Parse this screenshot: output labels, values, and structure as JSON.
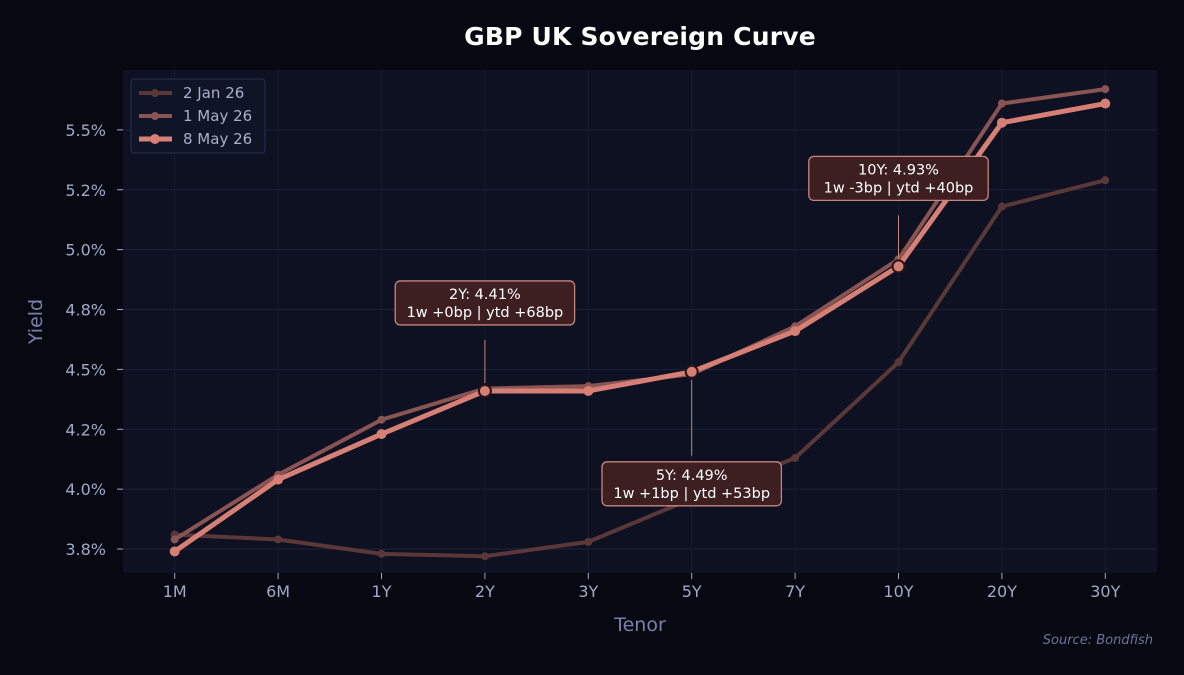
{
  "chart_data": {
    "type": "line",
    "title": "GBP UK Sovereign Curve",
    "xlabel": "Tenor",
    "ylabel": "Yield",
    "categories": [
      "1M",
      "6M",
      "1Y",
      "2Y",
      "3Y",
      "5Y",
      "7Y",
      "10Y",
      "20Y",
      "30Y"
    ],
    "y_ticks": [
      3.75,
      4.0,
      4.25,
      4.5,
      4.75,
      5.0,
      5.25,
      5.5
    ],
    "y_tick_labels": [
      "3.8%",
      "4.0%",
      "4.2%",
      "4.5%",
      "4.8%",
      "5.0%",
      "5.2%",
      "5.5%"
    ],
    "ylim": [
      3.65,
      5.75
    ],
    "grid": true,
    "legend_position": "top-left",
    "series": [
      {
        "name": "2 Jan 26",
        "color": "#5a3838",
        "values": [
          3.81,
          3.79,
          3.73,
          3.72,
          3.78,
          3.96,
          4.13,
          4.53,
          5.18,
          5.29
        ]
      },
      {
        "name": "1 May 26",
        "color": "#8a5452",
        "values": [
          3.79,
          4.06,
          4.29,
          4.42,
          4.43,
          4.48,
          4.68,
          4.96,
          5.61,
          5.67
        ]
      },
      {
        "name": "8 May 26",
        "color": "#d67f74",
        "values": [
          3.74,
          4.04,
          4.23,
          4.41,
          4.41,
          4.49,
          4.66,
          4.93,
          5.53,
          5.61
        ]
      }
    ],
    "annotations": [
      {
        "category": "2Y",
        "series": "8 May 26",
        "line1": "2Y: 4.41%",
        "line2": "1w +0bp | ytd +68bp",
        "placement": "above"
      },
      {
        "category": "5Y",
        "series": "8 May 26",
        "line1": "5Y: 4.49%",
        "line2": "1w +1bp | ytd +53bp",
        "placement": "below"
      },
      {
        "category": "10Y",
        "series": "8 May 26",
        "line1": "10Y: 4.93%",
        "line2": "1w -3bp | ytd +40bp",
        "placement": "above"
      }
    ],
    "source": "Source: Bondfish"
  }
}
